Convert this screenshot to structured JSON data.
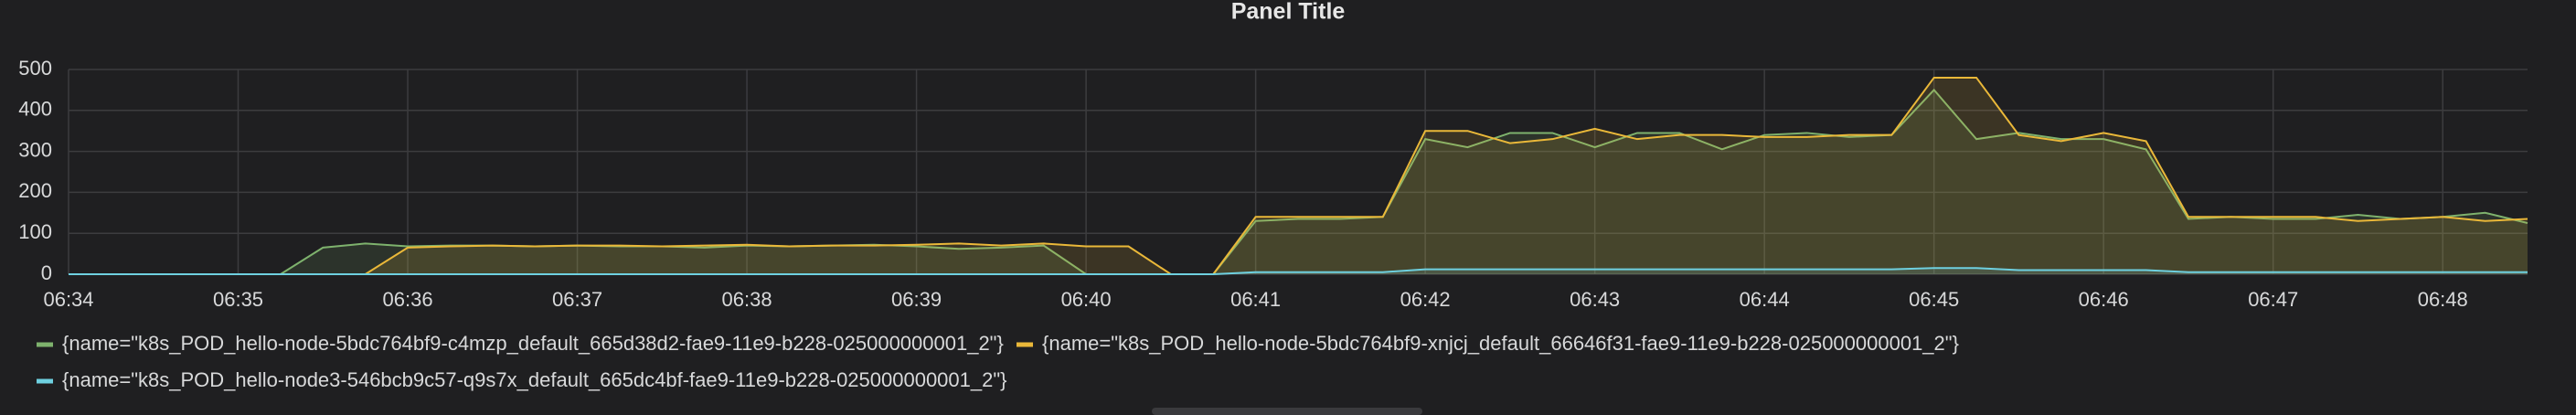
{
  "chart_data": {
    "type": "line",
    "title": "Panel Title",
    "categories": [
      "06:34",
      null,
      null,
      null,
      "06:35",
      null,
      null,
      null,
      "06:36",
      null,
      null,
      null,
      "06:37",
      null,
      null,
      null,
      "06:38",
      null,
      null,
      null,
      "06:39",
      null,
      null,
      null,
      "06:40",
      null,
      null,
      null,
      "06:41",
      null,
      null,
      null,
      "06:42",
      null,
      null,
      null,
      "06:43",
      null,
      null,
      null,
      "06:44",
      null,
      null,
      null,
      "06:45",
      null,
      null,
      null,
      "06:46",
      null,
      null,
      null,
      "06:47",
      null,
      null,
      null,
      "06:48",
      null,
      null
    ],
    "series": [
      {
        "name": "{name=\"k8s_POD_hello-node-5bdc764bf9-c4mzp_default_665d38d2-fae9-11e9-b228-025000000001_2\"}",
        "color": "#7eb26d",
        "values": [
          0,
          0,
          0,
          0,
          0,
          0,
          65,
          75,
          68,
          70,
          70,
          68,
          70,
          68,
          68,
          65,
          70,
          68,
          70,
          72,
          68,
          62,
          65,
          70,
          0,
          0,
          0,
          0,
          130,
          135,
          135,
          140,
          330,
          310,
          345,
          345,
          310,
          345,
          345,
          305,
          340,
          345,
          335,
          340,
          450,
          330,
          345,
          330,
          330,
          305,
          135,
          140,
          135,
          135,
          145,
          135,
          140,
          150,
          125
        ]
      },
      {
        "name": "{name=\"k8s_POD_hello-node-5bdc764bf9-xnjcj_default_66646f31-fae9-11e9-b228-025000000001_2\"}",
        "color": "#eab839",
        "values": [
          0,
          0,
          0,
          0,
          0,
          0,
          0,
          0,
          65,
          68,
          70,
          68,
          70,
          70,
          68,
          70,
          72,
          68,
          70,
          70,
          72,
          75,
          70,
          75,
          68,
          68,
          0,
          0,
          140,
          140,
          140,
          140,
          350,
          350,
          320,
          330,
          355,
          330,
          340,
          340,
          335,
          335,
          340,
          340,
          480,
          480,
          340,
          325,
          345,
          325,
          140,
          140,
          140,
          140,
          130,
          135,
          140,
          130,
          135
        ]
      },
      {
        "name": "{name=\"k8s_POD_hello-node3-546bcb9c57-q9s7x_default_665dc4bf-fae9-11e9-b228-025000000001_2\"}",
        "color": "#6ed0e0",
        "values": [
          0,
          0,
          0,
          0,
          0,
          0,
          0,
          0,
          0,
          0,
          0,
          0,
          0,
          0,
          0,
          0,
          0,
          0,
          0,
          0,
          0,
          0,
          0,
          0,
          0,
          0,
          0,
          0,
          5,
          5,
          5,
          5,
          12,
          12,
          12,
          12,
          12,
          12,
          12,
          12,
          12,
          12,
          12,
          12,
          15,
          15,
          10,
          10,
          10,
          10,
          5,
          5,
          5,
          5,
          5,
          5,
          5,
          5,
          5
        ]
      }
    ],
    "ylim": [
      0,
      500
    ],
    "yticks": [
      0,
      100,
      200,
      300,
      400,
      500
    ],
    "grid": true,
    "fill": true
  }
}
